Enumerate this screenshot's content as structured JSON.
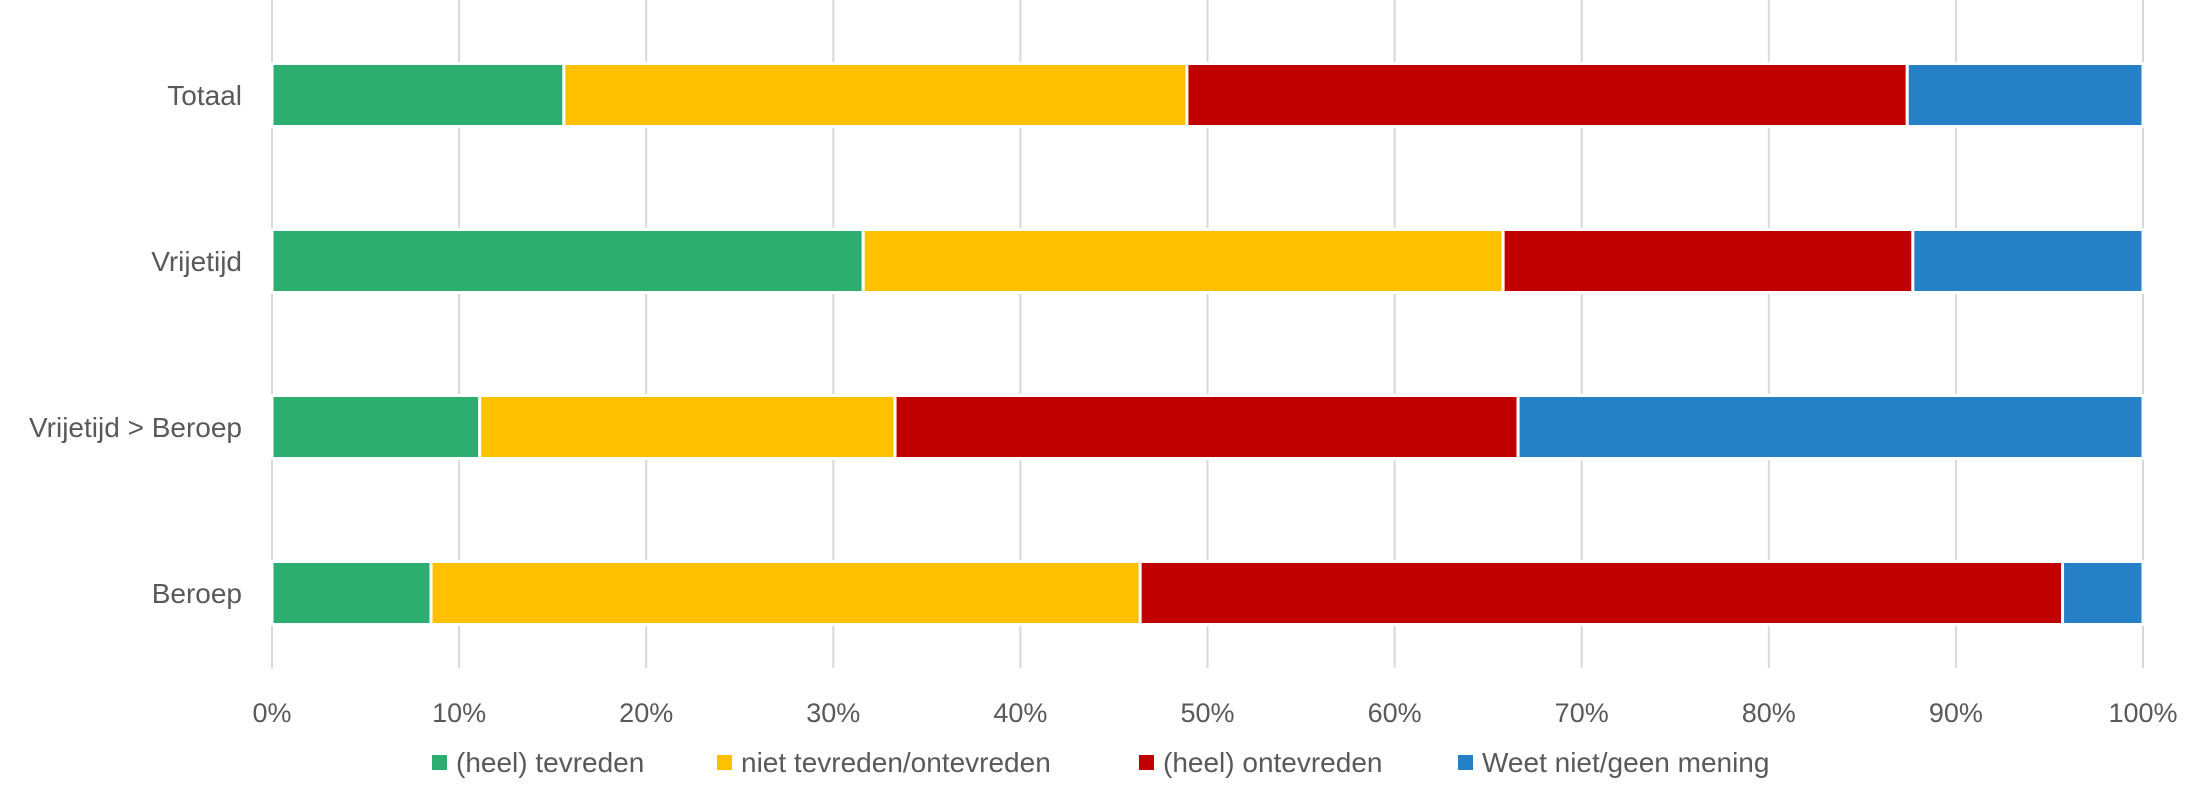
{
  "chart_data": {
    "type": "bar",
    "orientation": "horizontal",
    "stacked": "percent",
    "categories": [
      "Totaal",
      "Vrijetijd",
      "Vrijetijd > Beroep",
      "Beroep"
    ],
    "series": [
      {
        "name": "(heel) tevreden",
        "color": "#2BAE6F",
        "values": [
          15.6,
          31.6,
          11.1,
          8.5
        ]
      },
      {
        "name": "niet tevreden/ontevreden",
        "color": "#FFC000",
        "values": [
          33.3,
          34.2,
          22.2,
          37.9
        ]
      },
      {
        "name": "(heel) ontevreden",
        "color": "#C00000",
        "values": [
          38.5,
          21.9,
          33.3,
          49.3
        ]
      },
      {
        "name": "Weet niet/geen mening",
        "color": "#2680C6",
        "values": [
          12.6,
          12.3,
          33.4,
          4.3
        ]
      }
    ],
    "xlim": [
      0,
      100
    ],
    "xticks": [
      "0%",
      "10%",
      "20%",
      "30%",
      "40%",
      "50%",
      "60%",
      "70%",
      "80%",
      "90%",
      "100%"
    ],
    "grid": true,
    "legend_position": "bottom"
  }
}
